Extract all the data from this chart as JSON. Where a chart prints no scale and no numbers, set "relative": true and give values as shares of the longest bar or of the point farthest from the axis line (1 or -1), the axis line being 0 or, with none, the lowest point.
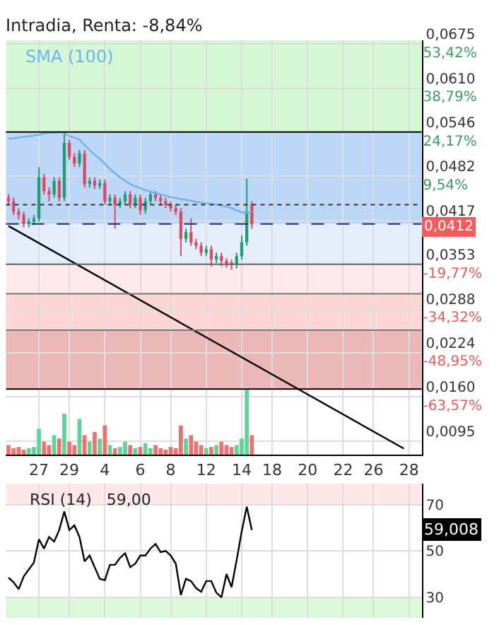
{
  "chart_data": [
    {
      "type": "candlestick",
      "title": "Intradia, Renta: -8,84%",
      "categories": [
        null,
        null,
        null,
        null,
        null,
        null,
        "27",
        null,
        null,
        null,
        null,
        null,
        "29",
        null,
        null,
        null,
        null,
        null,
        null,
        "4",
        null,
        null,
        null,
        null,
        null,
        null,
        "6",
        null,
        null,
        null,
        null,
        null,
        "8",
        null,
        null,
        null,
        null,
        null,
        null,
        "12",
        null,
        null,
        null,
        null,
        null,
        null,
        "14",
        null,
        null,
        null,
        null,
        null,
        "18",
        null,
        null,
        null,
        null,
        null,
        null,
        "20",
        null,
        null,
        null,
        null,
        null,
        null,
        "22",
        null,
        null,
        null,
        null,
        null,
        "26",
        null,
        null,
        null,
        null,
        null,
        null,
        "28",
        null,
        null
      ],
      "ohlc": [
        [
          0.045,
          0.0455,
          0.044,
          0.0445
        ],
        [
          0.0445,
          0.045,
          0.0425,
          0.043
        ],
        [
          0.043,
          0.0435,
          0.0418,
          0.0425
        ],
        [
          0.0425,
          0.043,
          0.0407,
          0.0412
        ],
        [
          0.0412,
          0.042,
          0.0407,
          0.0415
        ],
        [
          0.0415,
          0.0425,
          0.041,
          0.042
        ],
        [
          0.042,
          0.0495,
          0.0415,
          0.048
        ],
        [
          0.048,
          0.0485,
          0.0455,
          0.046
        ],
        [
          0.046,
          0.0465,
          0.0445,
          0.0455
        ],
        [
          0.0455,
          0.048,
          0.045,
          0.0475
        ],
        [
          0.0475,
          0.048,
          0.0445,
          0.045
        ],
        [
          0.045,
          0.0546,
          0.0445,
          0.053
        ],
        [
          0.053,
          0.0535,
          0.0505,
          0.051
        ],
        [
          0.051,
          0.0515,
          0.0495,
          0.05
        ],
        [
          0.05,
          0.052,
          0.0495,
          0.0515
        ],
        [
          0.0515,
          0.052,
          0.0465,
          0.047
        ],
        [
          0.047,
          0.048,
          0.0465,
          0.0475
        ],
        [
          0.0475,
          0.048,
          0.0463,
          0.0468
        ],
        [
          0.0468,
          0.0477,
          0.0463,
          0.0472
        ],
        [
          0.0472,
          0.0477,
          0.044,
          0.0445
        ],
        [
          0.0445,
          0.0455,
          0.044,
          0.045
        ],
        [
          0.045,
          0.0455,
          0.0405,
          0.044
        ],
        [
          0.044,
          0.045,
          0.0435,
          0.0445
        ],
        [
          0.0445,
          0.046,
          0.044,
          0.0455
        ],
        [
          0.0455,
          0.046,
          0.0435,
          0.044
        ],
        [
          0.044,
          0.0455,
          0.0435,
          0.045
        ],
        [
          0.045,
          0.0455,
          0.0425,
          0.0432
        ],
        [
          0.0432,
          0.045,
          0.0427,
          0.0445
        ],
        [
          0.0445,
          0.046,
          0.044,
          0.0455
        ],
        [
          0.0455,
          0.046,
          0.0445,
          0.045
        ],
        [
          0.045,
          0.0455,
          0.044,
          0.0445
        ],
        [
          0.0445,
          0.045,
          0.0435,
          0.044
        ],
        [
          0.044,
          0.0445,
          0.043,
          0.0435
        ],
        [
          0.0435,
          0.044,
          0.0425,
          0.043
        ],
        [
          0.043,
          0.0435,
          0.0365,
          0.039
        ],
        [
          0.039,
          0.0405,
          0.0385,
          0.04
        ],
        [
          0.04,
          0.042,
          0.038,
          0.0385
        ],
        [
          0.0385,
          0.039,
          0.0375,
          0.038
        ],
        [
          0.038,
          0.0385,
          0.0365,
          0.037
        ],
        [
          0.037,
          0.038,
          0.0365,
          0.0375
        ],
        [
          0.0375,
          0.038,
          0.035,
          0.036
        ],
        [
          0.036,
          0.037,
          0.0355,
          0.0365
        ],
        [
          0.0365,
          0.037,
          0.035,
          0.0358
        ],
        [
          0.0358,
          0.0362,
          0.0348,
          0.0355
        ],
        [
          0.0355,
          0.036,
          0.0345,
          0.0352
        ],
        [
          0.0352,
          0.037,
          0.0347,
          0.0365
        ],
        [
          0.0365,
          0.0395,
          0.036,
          0.0385
        ],
        [
          0.0385,
          0.0478,
          0.038,
          0.043
        ],
        [
          0.044,
          0.0445,
          0.0405,
          0.0412
        ],
        null,
        null,
        null,
        null,
        null,
        null,
        null,
        null,
        null,
        null,
        null,
        null,
        null,
        null,
        null,
        null,
        null,
        null,
        null,
        null,
        null,
        null,
        null,
        null,
        null,
        null,
        null,
        null,
        null,
        null,
        null,
        null,
        null
      ],
      "series": [
        {
          "type": "line",
          "name": "SMA (100)",
          "color": "#6eb2f0",
          "values": [
            0.0536,
            0.0537,
            0.0538,
            0.0539,
            0.054,
            0.0541,
            0.0542,
            0.0544,
            0.0545,
            0.0545,
            0.0546,
            0.0545,
            0.054,
            0.0538,
            0.0535,
            0.0527,
            0.052,
            0.0513,
            0.0507,
            0.05,
            0.0492,
            0.0486,
            0.048,
            0.0475,
            0.047,
            0.0467,
            0.0464,
            0.0461,
            0.0459,
            0.0457,
            0.0455,
            0.0453,
            0.0451,
            0.045,
            0.0448,
            0.0447,
            0.0446,
            0.0444,
            0.0443,
            0.0442,
            0.0441,
            0.044,
            0.0439,
            0.0437,
            0.0435,
            0.0432,
            0.0429,
            0.0428,
            0.043,
            null,
            null,
            null,
            null,
            null,
            null,
            null,
            null,
            null,
            null,
            null,
            null,
            null,
            null,
            null,
            null,
            null,
            null,
            null,
            null,
            null,
            null,
            null,
            null,
            null,
            null,
            null,
            null,
            null,
            null,
            null,
            null,
            null
          ]
        },
        {
          "type": "line",
          "color": "#000000",
          "values": [
            0.0409,
            null,
            null,
            null,
            null,
            null,
            null,
            null,
            null,
            null,
            null,
            null,
            null,
            null,
            null,
            null,
            null,
            null,
            null,
            null,
            null,
            null,
            null,
            null,
            null,
            null,
            null,
            null,
            null,
            null,
            null,
            null,
            null,
            null,
            null,
            null,
            null,
            null,
            null,
            null,
            null,
            null,
            null,
            null,
            null,
            null,
            null,
            null,
            null,
            null,
            null,
            null,
            null,
            null,
            null,
            null,
            null,
            null,
            null,
            null,
            null,
            null,
            null,
            null,
            null,
            null,
            null,
            null,
            null,
            null,
            null,
            null,
            null,
            null,
            null,
            null,
            null,
            null,
            0.0084,
            null,
            null,
            null
          ]
        }
      ],
      "ylim": [
        0.0075,
        0.068
      ],
      "y2lim": [
        -82.95,
        54.55
      ],
      "yticks": [
        {
          "value": 0.0675,
          "label": "0,0675"
        },
        {
          "value": 0.061,
          "label": "0,0610"
        },
        {
          "value": 0.0546,
          "label": "0,0546"
        },
        {
          "value": 0.0482,
          "label": "0,0482"
        },
        {
          "value": 0.0417,
          "label": "0,0417"
        },
        {
          "value": 0.0353,
          "label": "0,0353"
        },
        {
          "value": 0.0288,
          "label": "0,0288"
        },
        {
          "value": 0.0224,
          "label": "0,0224"
        },
        {
          "value": 0.016,
          "label": "0,0160"
        },
        {
          "value": 0.0095,
          "label": "0,0095"
        }
      ],
      "y2ticks": [
        {
          "value": 53.42,
          "label": "53,42%"
        },
        {
          "value": 38.79,
          "label": "38,79%"
        },
        {
          "value": 24.17,
          "label": "24,17%"
        },
        {
          "value": 9.54,
          "label": "9,54%"
        },
        {
          "value": -19.77,
          "label": "-19,77%"
        },
        {
          "value": -34.32,
          "label": "-34,32%"
        },
        {
          "value": -48.95,
          "label": "-48,95%"
        },
        {
          "value": -63.57,
          "label": "-63,57%"
        }
      ],
      "bands": [
        {
          "axis": "y",
          "from": 0.0546,
          "to": 0.068,
          "color": "#d5f7d3"
        },
        {
          "axis": "y",
          "from": 0.0412,
          "to": 0.0546,
          "color": "#bcd6f8"
        },
        {
          "axis": "y",
          "from": 0.0353,
          "to": 0.0412,
          "color": "#e3eefa"
        },
        {
          "axis": "y",
          "from": 0.031,
          "to": 0.0353,
          "color": "#fde9e9"
        },
        {
          "axis": "y",
          "from": 0.0257,
          "to": 0.031,
          "color": "#fcd5d5"
        },
        {
          "axis": "y",
          "from": 0.0171,
          "to": 0.0257,
          "color": "#ecb7b7"
        }
      ],
      "ref_lines": [
        {
          "axis": "y",
          "value": 0.0546,
          "color": "#000000",
          "line_style": "solid"
        },
        {
          "axis": "y",
          "value": 0.044,
          "color": "#333333",
          "line_style": "dotted"
        },
        {
          "axis": "y",
          "value": 0.0412,
          "color": "#1a2f7a",
          "line_style": "dashed",
          "label": "0,0412"
        },
        {
          "axis": "y",
          "value": 0.0353,
          "color": "#666666",
          "line_style": "solid"
        },
        {
          "axis": "y",
          "value": 0.031,
          "color": "#777777",
          "line_style": "solid"
        },
        {
          "axis": "y",
          "value": 0.0257,
          "color": "#777777",
          "line_style": "solid"
        },
        {
          "axis": "y",
          "value": 0.0171,
          "color": "#000000",
          "line_style": "solid"
        }
      ],
      "grid": true,
      "legend": false
    },
    {
      "type": "bar",
      "relative": true,
      "tick_labels": false,
      "categories": [
        null,
        null,
        null,
        null,
        null,
        null,
        "27",
        null,
        null,
        null,
        null,
        null,
        "29",
        null,
        null,
        null,
        null,
        null,
        null,
        "4",
        null,
        null,
        null,
        null,
        null,
        null,
        "6",
        null,
        null,
        null,
        null,
        null,
        "8",
        null,
        null,
        null,
        null,
        null,
        null,
        "12",
        null,
        null,
        null,
        null,
        null,
        null,
        "14",
        null,
        null,
        null,
        null,
        null,
        "18",
        null,
        null,
        null,
        null,
        null,
        null,
        "20",
        null,
        null,
        null,
        null,
        null,
        null,
        "22",
        null,
        null,
        null,
        null,
        null,
        "26",
        null,
        null,
        null,
        null,
        null,
        null,
        "28",
        null,
        null
      ],
      "values": [
        0.15,
        0.1,
        0.12,
        0.08,
        0.1,
        0.12,
        0.4,
        0.2,
        0.15,
        0.3,
        0.25,
        0.63,
        0.2,
        0.15,
        0.55,
        0.3,
        0.2,
        0.35,
        0.25,
        0.45,
        0.15,
        0.1,
        0.12,
        0.2,
        0.15,
        0.1,
        0.12,
        0.18,
        0.1,
        0.15,
        0.1,
        0.08,
        0.12,
        0.1,
        0.45,
        0.25,
        0.3,
        0.2,
        0.15,
        0.1,
        0.12,
        0.15,
        0.2,
        0.15,
        0.12,
        0.15,
        0.25,
        1,
        0.3,
        null,
        null,
        null,
        null,
        null,
        null,
        null,
        null,
        null,
        null,
        null,
        null,
        null,
        null,
        null,
        null,
        null,
        null,
        null,
        null,
        null,
        null,
        null,
        null,
        null,
        null,
        null,
        null,
        null,
        null,
        null,
        null,
        null
      ],
      "colors": [
        "#f07070",
        "#f07070",
        "#f07070",
        "#f07070",
        "#5fd49a",
        "#5fd49a",
        "#5fd49a",
        "#f07070",
        "#f07070",
        "#5fd49a",
        "#f07070",
        "#5fd49a",
        "#f07070",
        "#f07070",
        "#5fd49a",
        "#f07070",
        "#5fd49a",
        "#f07070",
        "#5fd49a",
        "#f07070",
        "#5fd49a",
        "#f07070",
        "#5fd49a",
        "#5fd49a",
        "#f07070",
        "#5fd49a",
        "#f07070",
        "#5fd49a",
        "#5fd49a",
        "#f07070",
        "#f07070",
        "#f07070",
        "#f07070",
        "#f07070",
        "#f07070",
        "#5fd49a",
        "#f07070",
        "#f07070",
        "#f07070",
        "#5fd49a",
        "#f07070",
        "#5fd49a",
        "#f07070",
        "#f07070",
        "#f07070",
        "#5fd49a",
        "#5fd49a",
        "#5fd49a",
        "#f07070",
        null,
        null,
        null,
        null,
        null,
        null,
        null,
        null,
        null,
        null,
        null,
        null,
        null,
        null,
        null,
        null,
        null,
        null,
        null,
        null,
        null,
        null,
        null,
        null,
        null,
        null,
        null,
        null,
        null,
        null,
        null,
        null,
        null
      ]
    },
    {
      "type": "line",
      "title": "RSI (14)   59,00",
      "tick_labels": "y",
      "grid": true,
      "legend": false,
      "categories": [
        null,
        null,
        null,
        null,
        null,
        null,
        "27",
        null,
        null,
        null,
        null,
        null,
        "29",
        null,
        null,
        null,
        null,
        null,
        null,
        "4",
        null,
        null,
        null,
        null,
        null,
        null,
        "6",
        null,
        null,
        null,
        null,
        null,
        "8",
        null,
        null,
        null,
        null,
        null,
        null,
        "12",
        null,
        null,
        null,
        null,
        null,
        null,
        "14",
        null,
        null,
        null,
        null,
        null,
        "18",
        null,
        null,
        null,
        null,
        null,
        null,
        "20",
        null,
        null,
        null,
        null,
        null,
        null,
        "22",
        null,
        null,
        null,
        null,
        null,
        "26",
        null,
        null,
        null,
        null,
        null,
        null,
        "28",
        null,
        null
      ],
      "series": [
        {
          "color": "#000000",
          "values": [
            38.5,
            36.5,
            33.5,
            39,
            42,
            45,
            55,
            51,
            56,
            54,
            59,
            67,
            59,
            61,
            56,
            45.5,
            48,
            43,
            38,
            37.4,
            44,
            44,
            47,
            49,
            43,
            44.5,
            48,
            48,
            51,
            53,
            49.5,
            50,
            48,
            44.5,
            31,
            38,
            37,
            34,
            32.4,
            37,
            37,
            32,
            30,
            40,
            34.4,
            46,
            58.4,
            69,
            59,
            null,
            null,
            null,
            null,
            null,
            null,
            null,
            null,
            null,
            null,
            null,
            null,
            null,
            null,
            null,
            null,
            null,
            null,
            null,
            null,
            null,
            null,
            null,
            null,
            null,
            null,
            null,
            null,
            null,
            null,
            null,
            null,
            null
          ]
        }
      ],
      "ylim": [
        21,
        79
      ],
      "yticks": [
        30,
        50,
        70
      ],
      "bands": [
        {
          "axis": "y",
          "from": 70,
          "to": 79,
          "color": "#fde8e8"
        },
        {
          "axis": "y",
          "from": 21,
          "to": 30,
          "color": "#ddf9dc"
        }
      ],
      "annotations": [
        "59,008"
      ]
    }
  ]
}
